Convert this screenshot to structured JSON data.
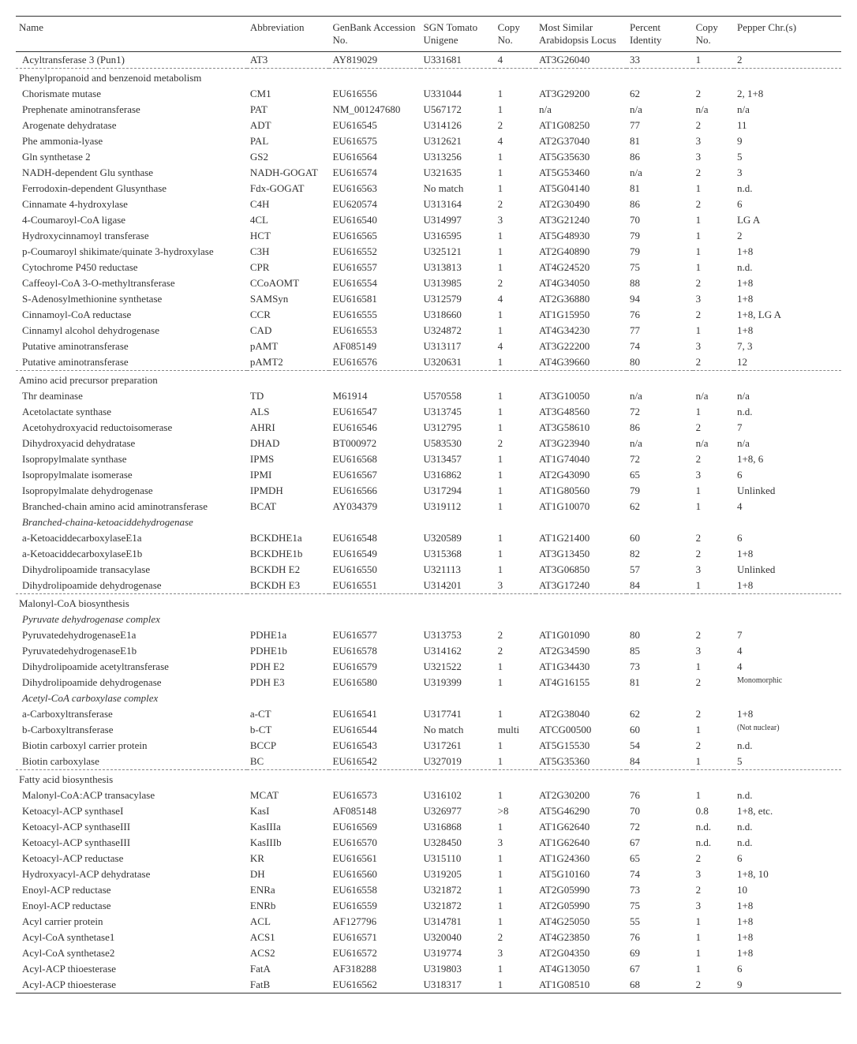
{
  "columns": [
    "Name",
    "Abbreviation",
    "GenBank Accession No.",
    "SGN Tomato Unigene",
    "Copy No.",
    "Most Similar Arabidopsis Locus",
    "Percent Identity",
    "Copy No.",
    "Pepper Chr.(s)"
  ],
  "blocks": [
    {
      "rows": [
        [
          "Acyltransferase 3 (Pun1)",
          "AT3",
          "AY819029",
          "U331681",
          "4",
          "AT3G26040",
          "33",
          "1",
          "2"
        ]
      ],
      "dashed_after": true
    },
    {
      "section": "Phenylpropanoid and benzenoid metabolism",
      "rows": [
        [
          "Chorismate mutase",
          "CM1",
          "EU616556",
          "U331044",
          "1",
          "AT3G29200",
          "62",
          "2",
          "2, 1+8"
        ],
        [
          "Prephenate aminotransferase",
          "PAT",
          "NM_001247680",
          "U567172",
          "1",
          "n/a",
          "n/a",
          "n/a",
          "n/a"
        ],
        [
          "Arogenate dehydratase",
          "ADT",
          "EU616545",
          "U314126",
          "2",
          "AT1G08250",
          "77",
          "2",
          "11"
        ],
        [
          "Phe ammonia-lyase",
          "PAL",
          "EU616575",
          "U312621",
          "4",
          "AT2G37040",
          "81",
          "3",
          "9"
        ],
        [
          "Gln synthetase 2",
          "GS2",
          "EU616564",
          "U313256",
          "1",
          "AT5G35630",
          "86",
          "3",
          "5"
        ],
        [
          "NADH-dependent Glu synthase",
          "NADH-GOGAT",
          "EU616574",
          "U321635",
          "1",
          "AT5G53460",
          "n/a",
          "2",
          "3"
        ],
        [
          "Ferrodoxin-dependent Glusynthase",
          "Fdx-GOGAT",
          "EU616563",
          "No match",
          "1",
          "AT5G04140",
          "81",
          "1",
          "n.d."
        ],
        [
          "Cinnamate 4-hydroxylase",
          "C4H",
          "EU620574",
          "U313164",
          "2",
          "AT2G30490",
          "86",
          "2",
          "6"
        ],
        [
          "4-Coumaroyl-CoA ligase",
          "4CL",
          "EU616540",
          "U314997",
          "3",
          "AT3G21240",
          "70",
          "1",
          "LG A"
        ],
        [
          "Hydroxycinnamoyl transferase",
          "HCT",
          "EU616565",
          "U316595",
          "1",
          "AT5G48930",
          "79",
          "1",
          "2"
        ],
        [
          "p-Coumaroyl shikimate/quinate 3-hydroxylase",
          "C3H",
          "EU616552",
          "U325121",
          "1",
          "AT2G40890",
          "79",
          "1",
          "1+8"
        ],
        [
          "Cytochrome P450 reductase",
          "CPR",
          "EU616557",
          "U313813",
          "1",
          "AT4G24520",
          "75",
          "1",
          "n.d."
        ],
        [
          "Caffeoyl-CoA 3-O-methyltransferase",
          "CCoAOMT",
          "EU616554",
          "U313985",
          "2",
          "AT4G34050",
          "88",
          "2",
          "1+8"
        ],
        [
          "S-Adenosylmethionine synthetase",
          "SAMSyn",
          "EU616581",
          "U312579",
          "4",
          "AT2G36880",
          "94",
          "3",
          "1+8"
        ],
        [
          "Cinnamoyl-CoA reductase",
          "CCR",
          "EU616555",
          "U318660",
          "1",
          "AT1G15950",
          "76",
          "2",
          "1+8, LG A"
        ],
        [
          "Cinnamyl alcohol dehydrogenase",
          "CAD",
          "EU616553",
          "U324872",
          "1",
          "AT4G34230",
          "77",
          "1",
          "1+8"
        ],
        [
          "Putative aminotransferase",
          "pAMT",
          "AF085149",
          "U313117",
          "4",
          "AT3G22200",
          "74",
          "3",
          "7, 3"
        ],
        [
          "Putative aminotransferase",
          "pAMT2",
          "EU616576",
          "U320631",
          "1",
          "AT4G39660",
          "80",
          "2",
          "12"
        ]
      ],
      "dashed_after": true
    },
    {
      "section": "Amino acid precursor preparation",
      "rows": [
        [
          "Thr deaminase",
          "TD",
          "M61914",
          "U570558",
          "1",
          "AT3G10050",
          "n/a",
          "n/a",
          "n/a"
        ],
        [
          "Acetolactate synthase",
          "ALS",
          "EU616547",
          "U313745",
          "1",
          "AT3G48560",
          "72",
          "1",
          "n.d."
        ],
        [
          "Acetohydroxyacid reductoisomerase",
          "AHRI",
          "EU616546",
          "U312795",
          "1",
          "AT3G58610",
          "86",
          "2",
          "7"
        ],
        [
          "Dihydroxyacid dehydratase",
          "DHAD",
          "BT000972",
          "U583530",
          "2",
          "AT3G23940",
          "n/a",
          "n/a",
          "n/a"
        ],
        [
          "Isopropylmalate synthase",
          "IPMS",
          "EU616568",
          "U313457",
          "1",
          "AT1G74040",
          "72",
          "2",
          "1+8, 6"
        ],
        [
          "Isopropylmalate isomerase",
          "IPMI",
          "EU616567",
          "U316862",
          "1",
          "AT2G43090",
          "65",
          "3",
          "6"
        ],
        [
          "Isopropylmalate dehydrogenase",
          "IPMDH",
          "EU616566",
          "U317294",
          "1",
          "AT1G80560",
          "79",
          "1",
          "Unlinked"
        ],
        [
          "Branched-chain amino acid aminotransferase",
          "BCAT",
          "AY034379",
          "U319112",
          "1",
          "AT1G10070",
          "62",
          "1",
          "4"
        ]
      ]
    },
    {
      "subsection": "Branched-chaina-ketoaciddehydrogenase",
      "rows": [
        [
          "a-KetoaciddecarboxylaseE1a",
          "BCKDHE1a",
          "EU616548",
          "U320589",
          "1",
          "AT1G21400",
          "60",
          "2",
          "6"
        ],
        [
          "a-KetoaciddecarboxylaseE1b",
          "BCKDHE1b",
          "EU616549",
          "U315368",
          "1",
          "AT3G13450",
          "82",
          "2",
          "1+8"
        ],
        [
          "Dihydrolipoamide transacylase",
          "BCKDH E2",
          "EU616550",
          "U321113",
          "1",
          "AT3G06850",
          "57",
          "3",
          "Unlinked"
        ],
        [
          "Dihydrolipoamide dehydrogenase",
          "BCKDH E3",
          "EU616551",
          "U314201",
          "3",
          "AT3G17240",
          "84",
          "1",
          "1+8"
        ]
      ],
      "dashed_after": true
    },
    {
      "section": "Malonyl-CoA biosynthesis",
      "rows": []
    },
    {
      "subsection": "Pyruvate dehydrogenase complex",
      "rows": [
        [
          "PyruvatedehydrogenaseE1a",
          "PDHE1a",
          "EU616577",
          "U313753",
          "2",
          "AT1G01090",
          "80",
          "2",
          "7"
        ],
        [
          "PyruvatedehydrogenaseE1b",
          "PDHE1b",
          "EU616578",
          "U314162",
          "2",
          "AT2G34590",
          "85",
          "3",
          "4"
        ],
        [
          "Dihydrolipoamide acetyltransferase",
          "PDH E2",
          "EU616579",
          "U321522",
          "1",
          "AT1G34430",
          "73",
          "1",
          "4"
        ],
        [
          "Dihydrolipoamide dehydrogenase",
          "PDH E3",
          "EU616580",
          "U319399",
          "1",
          "AT4G16155",
          "81",
          "2",
          "Monomorphic"
        ]
      ]
    },
    {
      "subsection": "Acetyl-CoA carboxylase complex",
      "rows": [
        [
          "a-Carboxyltransferase",
          "a-CT",
          "EU616541",
          "U317741",
          "1",
          "AT2G38040",
          "62",
          "2",
          "1+8"
        ],
        [
          "b-Carboxyltransferase",
          "b-CT",
          "EU616544",
          "No match",
          "multi",
          "ATCG00500",
          "60",
          "1",
          "(Not nuclear)"
        ],
        [
          "Biotin carboxyl carrier protein",
          "BCCP",
          "EU616543",
          "U317261",
          "1",
          "AT5G15530",
          "54",
          "2",
          "n.d."
        ],
        [
          "Biotin carboxylase",
          "BC",
          "EU616542",
          "U327019",
          "1",
          "AT5G35360",
          "84",
          "1",
          "5"
        ]
      ],
      "dashed_after": true
    },
    {
      "section": "Fatty acid biosynthesis",
      "rows": [
        [
          "Malonyl-CoA:ACP transacylase",
          "MCAT",
          "EU616573",
          "U316102",
          "1",
          "AT2G30200",
          "76",
          "1",
          "n.d."
        ],
        [
          "Ketoacyl-ACP synthaseI",
          "KasI",
          "AF085148",
          "U326977",
          ">8",
          "AT5G46290",
          "70",
          "0.8",
          "1+8, etc."
        ],
        [
          "Ketoacyl-ACP synthaseIII",
          "KasIIIa",
          "EU616569",
          "U316868",
          "1",
          "AT1G62640",
          "72",
          "n.d.",
          "n.d."
        ],
        [
          "Ketoacyl-ACP synthaseIII",
          "KasIIIb",
          "EU616570",
          "U328450",
          "3",
          "AT1G62640",
          "67",
          "n.d.",
          "n.d."
        ],
        [
          "Ketoacyl-ACP reductase",
          "KR",
          "EU616561",
          "U315110",
          "1",
          "AT1G24360",
          "65",
          "2",
          "6"
        ],
        [
          "Hydroxyacyl-ACP dehydratase",
          "DH",
          "EU616560",
          "U319205",
          "1",
          "AT5G10160",
          "74",
          "3",
          "1+8, 10"
        ],
        [
          "Enoyl-ACP reductase",
          "ENRa",
          "EU616558",
          "U321872",
          "1",
          "AT2G05990",
          "73",
          "2",
          "10"
        ],
        [
          "Enoyl-ACP reductase",
          "ENRb",
          "EU616559",
          "U321872",
          "1",
          "AT2G05990",
          "75",
          "3",
          "1+8"
        ],
        [
          "Acyl carrier protein",
          "ACL",
          "AF127796",
          "U314781",
          "1",
          "AT4G25050",
          "55",
          "1",
          "1+8"
        ],
        [
          "Acyl-CoA synthetase1",
          "ACS1",
          "EU616571",
          "U320040",
          "2",
          "AT4G23850",
          "76",
          "1",
          "1+8"
        ],
        [
          "Acyl-CoA synthetase2",
          "ACS2",
          "EU616572",
          "U319774",
          "3",
          "AT2G04350",
          "69",
          "1",
          "1+8"
        ],
        [
          "Acyl-ACP thioesterase",
          "FatA",
          "AF318288",
          "U319803",
          "1",
          "AT4G13050",
          "67",
          "1",
          "6"
        ],
        [
          "Acyl-ACP thioesterase",
          "FatB",
          "EU616562",
          "U318317",
          "1",
          "AT1G08510",
          "68",
          "2",
          "9"
        ]
      ],
      "last": true
    }
  ]
}
